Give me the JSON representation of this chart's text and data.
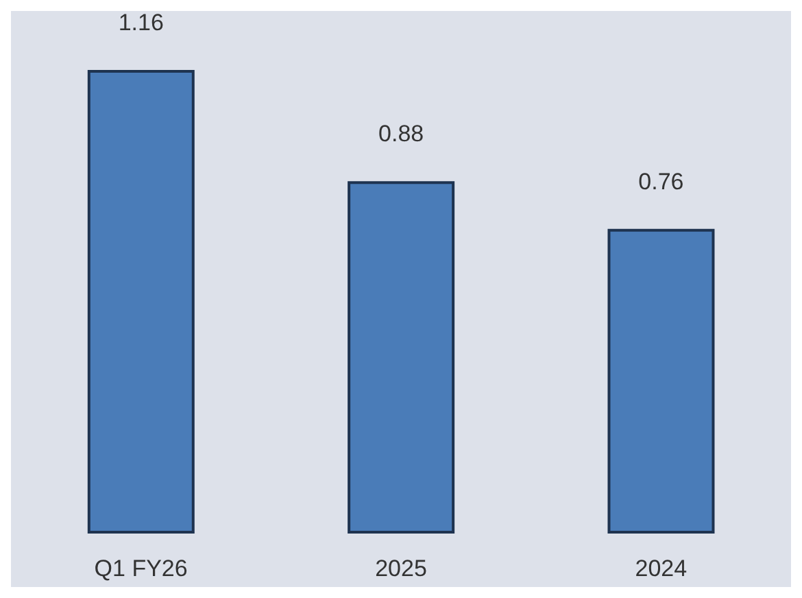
{
  "chart_data": {
    "type": "bar",
    "categories": [
      "Q1 FY26",
      "2025",
      "2024"
    ],
    "values": [
      1.16,
      0.88,
      0.76
    ],
    "color": "#4a7cb8",
    "data_labels": true,
    "grid": false,
    "legend": false
  }
}
